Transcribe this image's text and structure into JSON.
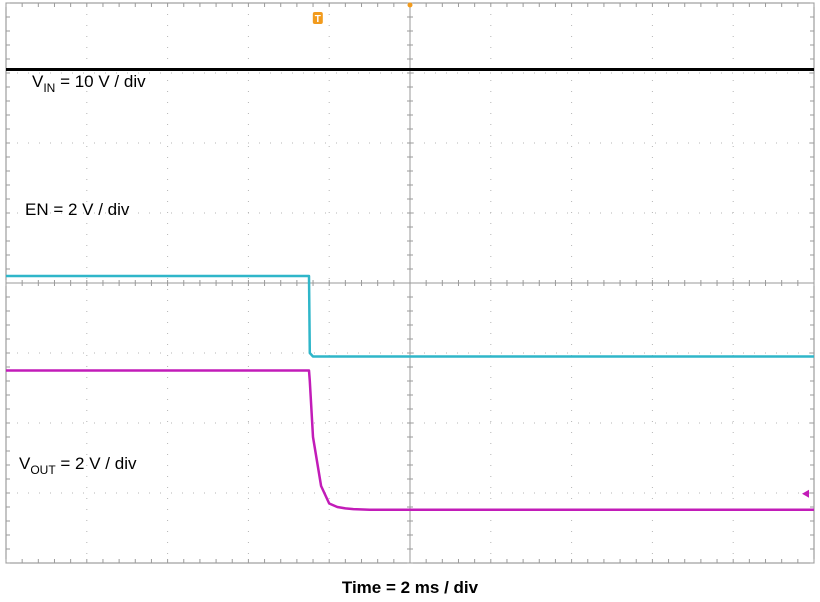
{
  "chart_data": {
    "type": "line",
    "xlabel": "Time = 2 ms / div",
    "x_scale": {
      "value": 2,
      "unit": "ms/div"
    },
    "divisions": {
      "x": 10,
      "y": 8
    },
    "x": [
      0,
      1,
      2,
      3,
      3.75,
      3.76,
      3.8,
      3.9,
      4.0,
      4.1,
      4.2,
      4.3,
      4.5,
      5,
      6,
      7,
      8,
      9,
      10
    ],
    "series": [
      {
        "name": "VIN",
        "label_main": "V",
        "label_sub": "IN",
        "label_rest": " = 10 V / div",
        "color": "#000000",
        "values": [
          7.05,
          7.05,
          7.05,
          7.05,
          7.05,
          7.05,
          7.05,
          7.05,
          7.05,
          7.05,
          7.05,
          7.05,
          7.05,
          7.05,
          7.05,
          7.05,
          7.05,
          7.05,
          7.05
        ]
      },
      {
        "name": "EN",
        "label_main": "EN",
        "label_sub": "",
        "label_rest": " = 2 V / div",
        "color": "#2fb6c9",
        "values": [
          4.1,
          4.1,
          4.1,
          4.1,
          4.1,
          3.0,
          2.95,
          2.95,
          2.95,
          2.95,
          2.95,
          2.95,
          2.95,
          2.95,
          2.95,
          2.95,
          2.95,
          2.95,
          2.95
        ]
      },
      {
        "name": "VOUT",
        "label_main": "V",
        "label_sub": "OUT",
        "label_rest": " = 2 V / div",
        "color": "#c21cb8",
        "values": [
          2.75,
          2.75,
          2.75,
          2.75,
          2.75,
          2.6,
          1.8,
          1.1,
          0.85,
          0.8,
          0.78,
          0.77,
          0.76,
          0.76,
          0.76,
          0.76,
          0.76,
          0.76,
          0.76
        ]
      }
    ],
    "trigger_marker": "T",
    "grid": true
  }
}
